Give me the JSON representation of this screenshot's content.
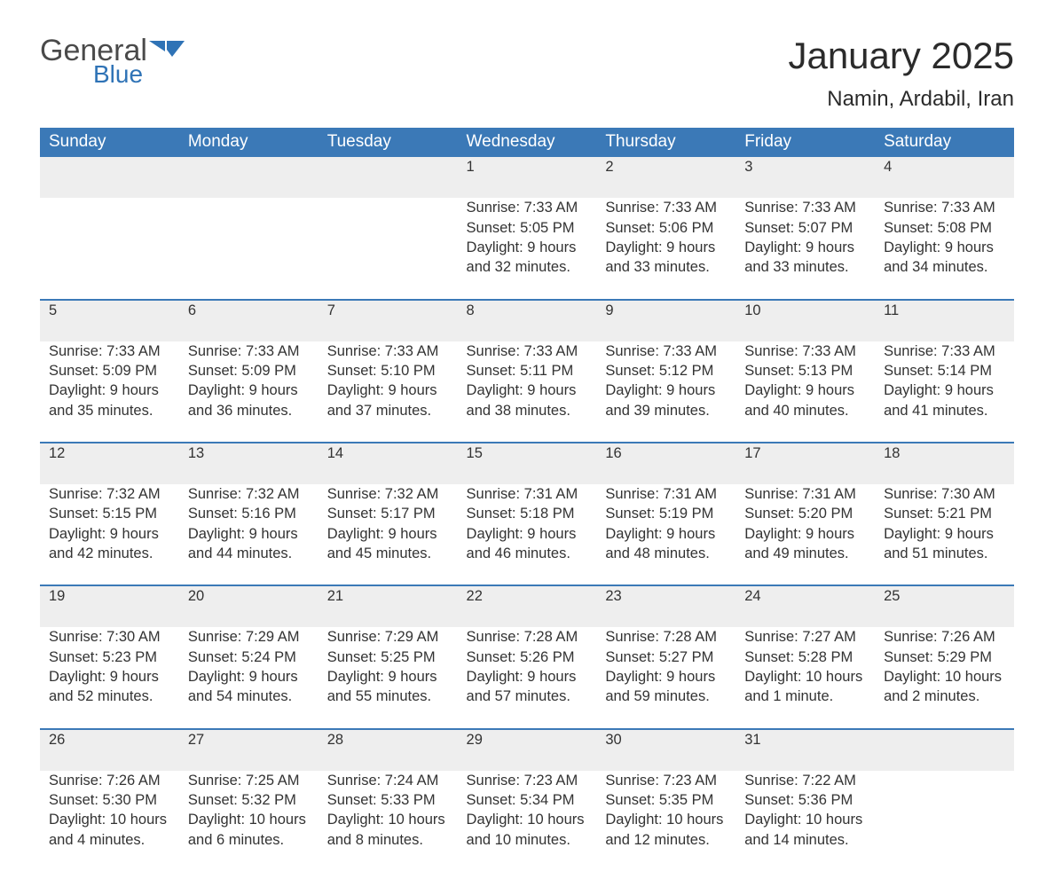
{
  "logo": {
    "text_main": "General",
    "text_sub": "Blue",
    "main_color": "#4a4a4a",
    "sub_color": "#2f73b6"
  },
  "title": "January 2025",
  "location": "Namin, Ardabil, Iran",
  "colors": {
    "header_bg": "#3b79b7",
    "header_text": "#ffffff",
    "daynum_bg": "#eeeeee",
    "daynum_border": "#3b79b7",
    "body_text": "#333333",
    "page_bg": "#ffffff"
  },
  "weekdays": [
    "Sunday",
    "Monday",
    "Tuesday",
    "Wednesday",
    "Thursday",
    "Friday",
    "Saturday"
  ],
  "weeks": [
    [
      null,
      null,
      null,
      {
        "n": "1",
        "sunrise": "Sunrise: 7:33 AM",
        "sunset": "Sunset: 5:05 PM",
        "daylight1": "Daylight: 9 hours",
        "daylight2": "and 32 minutes."
      },
      {
        "n": "2",
        "sunrise": "Sunrise: 7:33 AM",
        "sunset": "Sunset: 5:06 PM",
        "daylight1": "Daylight: 9 hours",
        "daylight2": "and 33 minutes."
      },
      {
        "n": "3",
        "sunrise": "Sunrise: 7:33 AM",
        "sunset": "Sunset: 5:07 PM",
        "daylight1": "Daylight: 9 hours",
        "daylight2": "and 33 minutes."
      },
      {
        "n": "4",
        "sunrise": "Sunrise: 7:33 AM",
        "sunset": "Sunset: 5:08 PM",
        "daylight1": "Daylight: 9 hours",
        "daylight2": "and 34 minutes."
      }
    ],
    [
      {
        "n": "5",
        "sunrise": "Sunrise: 7:33 AM",
        "sunset": "Sunset: 5:09 PM",
        "daylight1": "Daylight: 9 hours",
        "daylight2": "and 35 minutes."
      },
      {
        "n": "6",
        "sunrise": "Sunrise: 7:33 AM",
        "sunset": "Sunset: 5:09 PM",
        "daylight1": "Daylight: 9 hours",
        "daylight2": "and 36 minutes."
      },
      {
        "n": "7",
        "sunrise": "Sunrise: 7:33 AM",
        "sunset": "Sunset: 5:10 PM",
        "daylight1": "Daylight: 9 hours",
        "daylight2": "and 37 minutes."
      },
      {
        "n": "8",
        "sunrise": "Sunrise: 7:33 AM",
        "sunset": "Sunset: 5:11 PM",
        "daylight1": "Daylight: 9 hours",
        "daylight2": "and 38 minutes."
      },
      {
        "n": "9",
        "sunrise": "Sunrise: 7:33 AM",
        "sunset": "Sunset: 5:12 PM",
        "daylight1": "Daylight: 9 hours",
        "daylight2": "and 39 minutes."
      },
      {
        "n": "10",
        "sunrise": "Sunrise: 7:33 AM",
        "sunset": "Sunset: 5:13 PM",
        "daylight1": "Daylight: 9 hours",
        "daylight2": "and 40 minutes."
      },
      {
        "n": "11",
        "sunrise": "Sunrise: 7:33 AM",
        "sunset": "Sunset: 5:14 PM",
        "daylight1": "Daylight: 9 hours",
        "daylight2": "and 41 minutes."
      }
    ],
    [
      {
        "n": "12",
        "sunrise": "Sunrise: 7:32 AM",
        "sunset": "Sunset: 5:15 PM",
        "daylight1": "Daylight: 9 hours",
        "daylight2": "and 42 minutes."
      },
      {
        "n": "13",
        "sunrise": "Sunrise: 7:32 AM",
        "sunset": "Sunset: 5:16 PM",
        "daylight1": "Daylight: 9 hours",
        "daylight2": "and 44 minutes."
      },
      {
        "n": "14",
        "sunrise": "Sunrise: 7:32 AM",
        "sunset": "Sunset: 5:17 PM",
        "daylight1": "Daylight: 9 hours",
        "daylight2": "and 45 minutes."
      },
      {
        "n": "15",
        "sunrise": "Sunrise: 7:31 AM",
        "sunset": "Sunset: 5:18 PM",
        "daylight1": "Daylight: 9 hours",
        "daylight2": "and 46 minutes."
      },
      {
        "n": "16",
        "sunrise": "Sunrise: 7:31 AM",
        "sunset": "Sunset: 5:19 PM",
        "daylight1": "Daylight: 9 hours",
        "daylight2": "and 48 minutes."
      },
      {
        "n": "17",
        "sunrise": "Sunrise: 7:31 AM",
        "sunset": "Sunset: 5:20 PM",
        "daylight1": "Daylight: 9 hours",
        "daylight2": "and 49 minutes."
      },
      {
        "n": "18",
        "sunrise": "Sunrise: 7:30 AM",
        "sunset": "Sunset: 5:21 PM",
        "daylight1": "Daylight: 9 hours",
        "daylight2": "and 51 minutes."
      }
    ],
    [
      {
        "n": "19",
        "sunrise": "Sunrise: 7:30 AM",
        "sunset": "Sunset: 5:23 PM",
        "daylight1": "Daylight: 9 hours",
        "daylight2": "and 52 minutes."
      },
      {
        "n": "20",
        "sunrise": "Sunrise: 7:29 AM",
        "sunset": "Sunset: 5:24 PM",
        "daylight1": "Daylight: 9 hours",
        "daylight2": "and 54 minutes."
      },
      {
        "n": "21",
        "sunrise": "Sunrise: 7:29 AM",
        "sunset": "Sunset: 5:25 PM",
        "daylight1": "Daylight: 9 hours",
        "daylight2": "and 55 minutes."
      },
      {
        "n": "22",
        "sunrise": "Sunrise: 7:28 AM",
        "sunset": "Sunset: 5:26 PM",
        "daylight1": "Daylight: 9 hours",
        "daylight2": "and 57 minutes."
      },
      {
        "n": "23",
        "sunrise": "Sunrise: 7:28 AM",
        "sunset": "Sunset: 5:27 PM",
        "daylight1": "Daylight: 9 hours",
        "daylight2": "and 59 minutes."
      },
      {
        "n": "24",
        "sunrise": "Sunrise: 7:27 AM",
        "sunset": "Sunset: 5:28 PM",
        "daylight1": "Daylight: 10 hours",
        "daylight2": "and 1 minute."
      },
      {
        "n": "25",
        "sunrise": "Sunrise: 7:26 AM",
        "sunset": "Sunset: 5:29 PM",
        "daylight1": "Daylight: 10 hours",
        "daylight2": "and 2 minutes."
      }
    ],
    [
      {
        "n": "26",
        "sunrise": "Sunrise: 7:26 AM",
        "sunset": "Sunset: 5:30 PM",
        "daylight1": "Daylight: 10 hours",
        "daylight2": "and 4 minutes."
      },
      {
        "n": "27",
        "sunrise": "Sunrise: 7:25 AM",
        "sunset": "Sunset: 5:32 PM",
        "daylight1": "Daylight: 10 hours",
        "daylight2": "and 6 minutes."
      },
      {
        "n": "28",
        "sunrise": "Sunrise: 7:24 AM",
        "sunset": "Sunset: 5:33 PM",
        "daylight1": "Daylight: 10 hours",
        "daylight2": "and 8 minutes."
      },
      {
        "n": "29",
        "sunrise": "Sunrise: 7:23 AM",
        "sunset": "Sunset: 5:34 PM",
        "daylight1": "Daylight: 10 hours",
        "daylight2": "and 10 minutes."
      },
      {
        "n": "30",
        "sunrise": "Sunrise: 7:23 AM",
        "sunset": "Sunset: 5:35 PM",
        "daylight1": "Daylight: 10 hours",
        "daylight2": "and 12 minutes."
      },
      {
        "n": "31",
        "sunrise": "Sunrise: 7:22 AM",
        "sunset": "Sunset: 5:36 PM",
        "daylight1": "Daylight: 10 hours",
        "daylight2": "and 14 minutes."
      },
      null
    ]
  ]
}
